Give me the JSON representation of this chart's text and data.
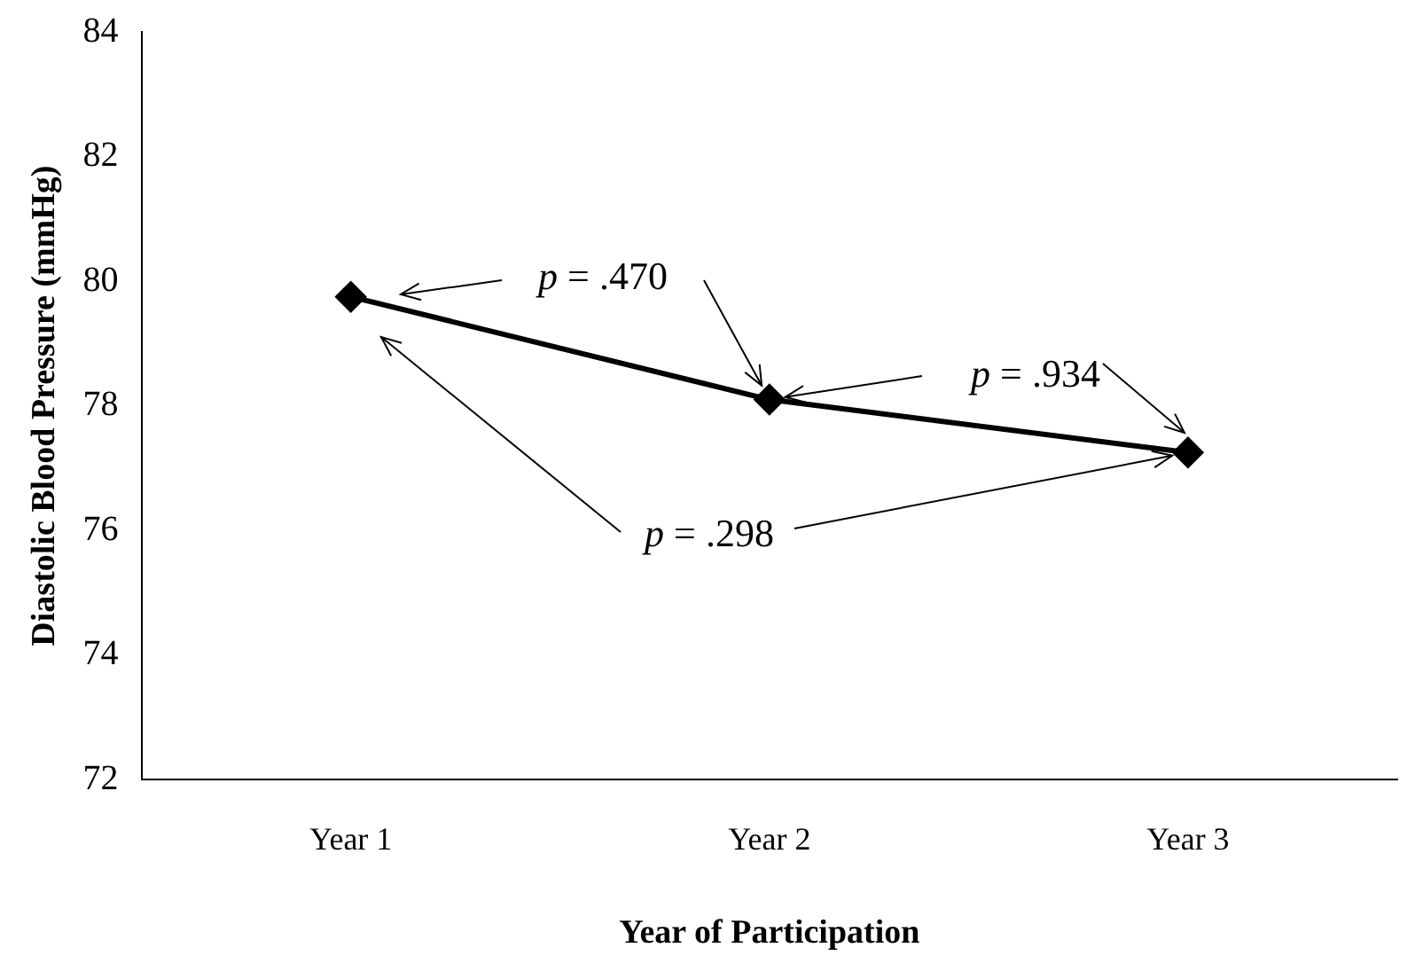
{
  "chart_data": {
    "type": "line",
    "xlabel": "Year of Participation",
    "ylabel": "Diastolic Blood Pressure (mmHg)",
    "categories": [
      "Year 1",
      "Year 2",
      "Year 3"
    ],
    "series": [
      {
        "color": "#000000",
        "values": [
          79.75,
          78.1,
          77.25
        ]
      }
    ],
    "ylim": [
      72,
      84
    ],
    "yticks": [
      72,
      74,
      76,
      78,
      80,
      82,
      84
    ],
    "grid": false,
    "legend": false,
    "marker": "diamond",
    "line_style": "solid",
    "annotations": [
      {
        "text": "p = .470",
        "x": "Year 2",
        "y": 78.1
      },
      {
        "text": "p = .934",
        "x": "Year 2",
        "y": 78.1
      },
      {
        "text": "p = .298",
        "x": "Year 3",
        "y": 77.25
      }
    ]
  }
}
